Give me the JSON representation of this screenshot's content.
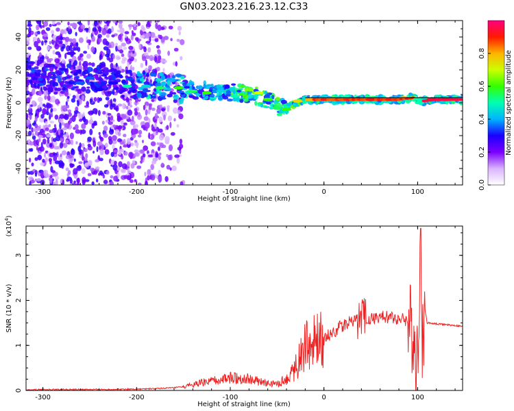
{
  "title": "GN03.2023.216.23.12.C33",
  "colors": {
    "axis": "#000000",
    "snr_line": "#ee2222",
    "trace_line": "#000000"
  },
  "colorbar": {
    "label": "Normalized spectral amplitude",
    "ticks": [
      "0.0",
      "0.2",
      "0.4",
      "0.6",
      "0.8"
    ],
    "tick_values": [
      0.0,
      0.2,
      0.4,
      0.6,
      0.8
    ],
    "range": [
      0,
      1
    ],
    "stops": [
      "#ffffff",
      "#d9b3ff",
      "#7a00ff",
      "#1a00ff",
      "#00b3ff",
      "#00ffb3",
      "#33ff00",
      "#ccff00",
      "#ffb300",
      "#ff1a00",
      "#ff0080"
    ]
  },
  "chart_data": [
    {
      "type": "heatmap",
      "xlabel": "Height of straight line (km)",
      "ylabel": "Frequency (Hz)",
      "xlim": [
        -318,
        148
      ],
      "ylim": [
        -50,
        50
      ],
      "xticks": [
        -300,
        -200,
        -100,
        0,
        100
      ],
      "xtick_labels": [
        "-300",
        "-200",
        "-100",
        "0",
        "100"
      ],
      "yticks": [
        -40,
        -20,
        0,
        20,
        40
      ],
      "ytick_labels": [
        "-40",
        "-20",
        "0",
        "20",
        "40"
      ],
      "ridge": {
        "x": [
          -318,
          -280,
          -240,
          -200,
          -160,
          -120,
          -90,
          -70,
          -55,
          -45,
          -40,
          -30,
          -20,
          -10,
          0,
          20,
          40,
          60,
          80,
          95,
          105,
          120,
          148
        ],
        "y": [
          18,
          15,
          13,
          11,
          9,
          7,
          6,
          4,
          0,
          -3,
          -4,
          0,
          2,
          2,
          2,
          2,
          2,
          2,
          2,
          3,
          1,
          2,
          2
        ]
      },
      "reference_line": {
        "y": [
          3,
          3
        ],
        "x": [
          -20,
          148
        ]
      },
      "points": [
        {
          "x": -270,
          "y": 30,
          "a": 0.25
        },
        {
          "x": -260,
          "y": 12,
          "a": 0.35
        },
        {
          "x": -250,
          "y": 15,
          "a": 0.35
        },
        {
          "x": -240,
          "y": 8,
          "a": 0.3
        },
        {
          "x": -225,
          "y": 12,
          "a": 0.3
        },
        {
          "x": -210,
          "y": 10,
          "a": 0.5
        },
        {
          "x": -190,
          "y": 10,
          "a": 0.45
        },
        {
          "x": -175,
          "y": 9,
          "a": 0.55
        },
        {
          "x": -155,
          "y": 9,
          "a": 0.6
        },
        {
          "x": -140,
          "y": 7,
          "a": 0.55
        },
        {
          "x": -125,
          "y": 6,
          "a": 0.6
        },
        {
          "x": -110,
          "y": 7,
          "a": 0.45
        },
        {
          "x": -95,
          "y": 4,
          "a": 0.5
        },
        {
          "x": -80,
          "y": 8,
          "a": 0.65
        },
        {
          "x": -70,
          "y": 6,
          "a": 0.7
        },
        {
          "x": -60,
          "y": 2,
          "a": 0.6
        },
        {
          "x": -50,
          "y": -3,
          "a": 0.55
        },
        {
          "x": -40,
          "y": -4,
          "a": 0.6
        },
        {
          "x": -28,
          "y": 1,
          "a": 0.75
        },
        {
          "x": -15,
          "y": 2,
          "a": 0.8
        },
        {
          "x": -5,
          "y": 2,
          "a": 0.85
        },
        {
          "x": 15,
          "y": 2,
          "a": 0.9
        },
        {
          "x": 30,
          "y": 2,
          "a": 0.92
        },
        {
          "x": 50,
          "y": 2,
          "a": 0.9
        },
        {
          "x": 70,
          "y": 2,
          "a": 0.85
        },
        {
          "x": 85,
          "y": 3,
          "a": 0.8
        },
        {
          "x": 95,
          "y": 3,
          "a": 0.7
        },
        {
          "x": 102,
          "y": 0,
          "a": 0.5
        },
        {
          "x": 115,
          "y": 2,
          "a": 0.95
        },
        {
          "x": 130,
          "y": 2,
          "a": 0.95
        },
        {
          "x": 145,
          "y": 2,
          "a": 0.7
        }
      ]
    },
    {
      "type": "line",
      "xlabel": "Height of straight line (km)",
      "ylabel": "SNR (10 * v/v)",
      "y_multiplier_label": "(x10",
      "y_multiplier_exp": "4",
      "xlim": [
        -318,
        148
      ],
      "ylim": [
        0,
        3.65
      ],
      "xticks": [
        -300,
        -200,
        -100,
        0,
        100
      ],
      "xtick_labels": [
        "-300",
        "-200",
        "-100",
        "0",
        "100"
      ],
      "yticks": [
        0,
        1,
        2,
        3
      ],
      "ytick_labels": [
        "0",
        "1",
        "2",
        "3"
      ],
      "series": [
        {
          "x": [
            -318,
            -300,
            -250,
            -200,
            -180,
            -160,
            -150,
            -140,
            -130,
            -120,
            -110,
            -100,
            -90,
            -80,
            -70,
            -60,
            -50,
            -40,
            -30,
            -25,
            -20,
            -15,
            -10,
            -5,
            0,
            10,
            20,
            30,
            40,
            50,
            60,
            70,
            80,
            90,
            95,
            100,
            103,
            105,
            108,
            110,
            120,
            130,
            140,
            148
          ],
          "y": [
            0.01,
            0.02,
            0.02,
            0.03,
            0.04,
            0.06,
            0.08,
            0.12,
            0.17,
            0.2,
            0.24,
            0.28,
            0.28,
            0.25,
            0.2,
            0.15,
            0.15,
            0.25,
            0.55,
            0.8,
            0.95,
            1.0,
            1.05,
            1.1,
            1.15,
            1.3,
            1.45,
            1.55,
            1.6,
            1.6,
            1.62,
            1.63,
            1.6,
            1.55,
            1.3,
            0.6,
            3.5,
            1.0,
            1.8,
            1.5,
            1.48,
            1.46,
            1.44,
            1.42
          ]
        }
      ]
    }
  ]
}
